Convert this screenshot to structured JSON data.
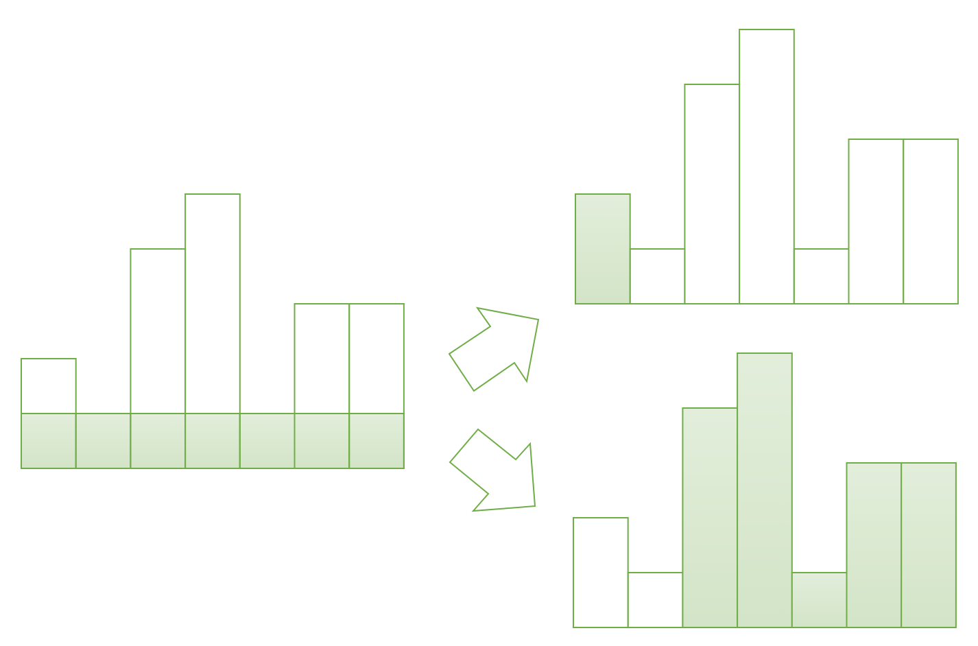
{
  "colors": {
    "stroke": "#70ad47",
    "fill_top": "#e2eedb",
    "fill_bottom": "#d3e4c7",
    "background": "#ffffff"
  },
  "chart_data": [
    {
      "type": "bar",
      "panel": "left",
      "values": [
        2,
        1,
        4,
        5,
        1,
        3,
        3
      ],
      "filled_level": 1,
      "unit": 1
    },
    {
      "type": "bar",
      "panel": "top-right",
      "values": [
        2,
        1,
        4,
        5,
        1,
        3,
        3
      ],
      "filled_bars": [
        0
      ],
      "unit": 1
    },
    {
      "type": "bar",
      "panel": "bottom-right",
      "values": [
        2,
        1,
        4,
        5,
        1,
        3,
        3
      ],
      "filled_bars": [
        2,
        3,
        4,
        5,
        6
      ],
      "unit": 1
    }
  ],
  "arrows": [
    {
      "name": "arrow-up-right",
      "direction": "up-right"
    },
    {
      "name": "arrow-down-right",
      "direction": "down-right"
    }
  ]
}
